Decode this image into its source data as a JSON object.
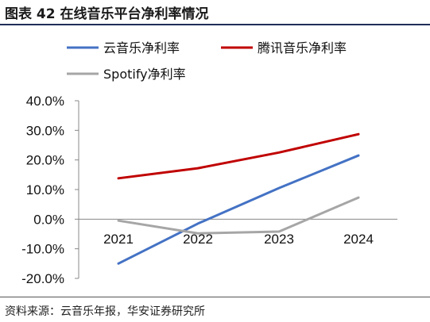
{
  "header": {
    "title": "图表 42 在线音乐平台净利率情况"
  },
  "footer": {
    "source": "资料来源：云音乐年报，华安证券研究所"
  },
  "chart_data": {
    "type": "line",
    "title": "",
    "xlabel": "",
    "ylabel": "",
    "categories": [
      "2021",
      "2022",
      "2023",
      "2024"
    ],
    "ylim": [
      -20,
      40
    ],
    "yticks": [
      40,
      30,
      20,
      10,
      0,
      -10,
      -20
    ],
    "ytick_labels": [
      "40.0%",
      "30.0%",
      "20.0%",
      "10.0%",
      "0.0%",
      "-10.0%",
      "-20.0%"
    ],
    "grid": false,
    "legend_position": "top",
    "series": [
      {
        "name": "云音乐净利率",
        "color": "#4472C4",
        "values": [
          -15.0,
          -1.5,
          10.5,
          21.5
        ]
      },
      {
        "name": "腾讯音乐净利率",
        "color": "#C00000",
        "values": [
          13.8,
          17.2,
          22.5,
          28.7
        ]
      },
      {
        "name": "Spotify净利率",
        "color": "#A6A6A6",
        "values": [
          -0.5,
          -4.8,
          -4.2,
          7.3
        ]
      }
    ]
  }
}
